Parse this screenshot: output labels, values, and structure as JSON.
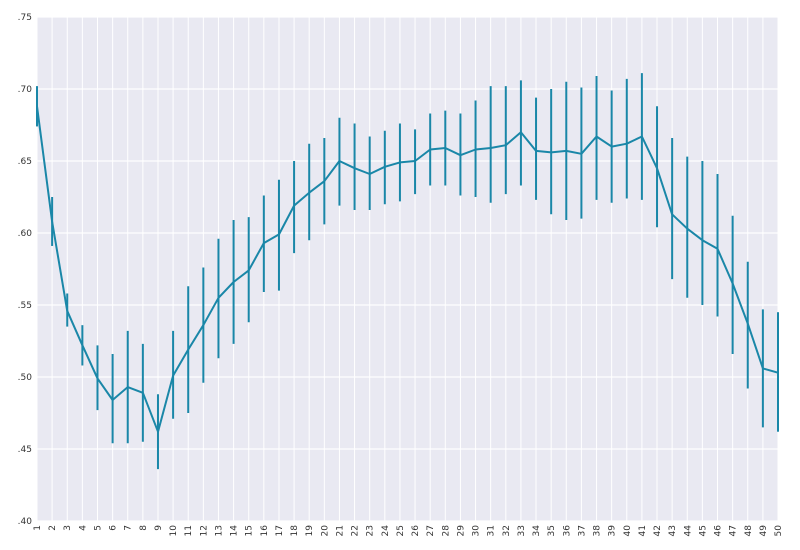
{
  "chart_data": {
    "type": "line",
    "title": "",
    "xlabel": "",
    "ylabel": "",
    "ylim": [
      0.4,
      0.75
    ],
    "y_ticks": [
      ".40",
      ".45",
      ".50",
      ".55",
      ".60",
      ".65",
      ".70",
      ".75"
    ],
    "y_tick_values": [
      0.4,
      0.45,
      0.5,
      0.55,
      0.6,
      0.65,
      0.7,
      0.75
    ],
    "x_ticks": [
      "1",
      "2",
      "3",
      "4",
      "5",
      "6",
      "7",
      "8",
      "9",
      "10",
      "11",
      "12",
      "13",
      "14",
      "15",
      "16",
      "17",
      "18",
      "19",
      "20",
      "21",
      "22",
      "23",
      "24",
      "25",
      "26",
      "27",
      "28",
      "29",
      "30",
      "31",
      "32",
      "33",
      "34",
      "35",
      "36",
      "37",
      "38",
      "39",
      "40",
      "41",
      "42",
      "43",
      "44",
      "45",
      "46",
      "47",
      "48",
      "49",
      "50"
    ],
    "grid": true,
    "colors": {
      "line": "#1a87a8",
      "background": "#e9e9f2",
      "grid": "#ffffff"
    },
    "series": [
      {
        "values": [
          0.688,
          0.608,
          0.546,
          0.522,
          0.499,
          0.484,
          0.493,
          0.489,
          0.462,
          0.501,
          0.519,
          0.536,
          0.555,
          0.566,
          0.574,
          0.593,
          0.599,
          0.619,
          0.628,
          0.636,
          0.65,
          0.645,
          0.641,
          0.646,
          0.649,
          0.65,
          0.658,
          0.659,
          0.654,
          0.658,
          0.659,
          0.661,
          0.67,
          0.657,
          0.656,
          0.657,
          0.655,
          0.667,
          0.66,
          0.662,
          0.667,
          0.645,
          0.613,
          0.603,
          0.595,
          0.589,
          0.565,
          0.537,
          0.506,
          0.503
        ],
        "err_low": [
          0.674,
          0.591,
          0.535,
          0.508,
          0.477,
          0.454,
          0.454,
          0.455,
          0.436,
          0.471,
          0.475,
          0.496,
          0.513,
          0.523,
          0.538,
          0.559,
          0.56,
          0.586,
          0.595,
          0.606,
          0.619,
          0.616,
          0.616,
          0.62,
          0.622,
          0.627,
          0.633,
          0.633,
          0.626,
          0.625,
          0.621,
          0.627,
          0.633,
          0.623,
          0.613,
          0.609,
          0.61,
          0.623,
          0.621,
          0.624,
          0.623,
          0.604,
          0.568,
          0.555,
          0.55,
          0.542,
          0.516,
          0.492,
          0.465,
          0.462
        ],
        "err_high": [
          0.702,
          0.625,
          0.558,
          0.536,
          0.522,
          0.516,
          0.532,
          0.523,
          0.488,
          0.532,
          0.563,
          0.576,
          0.596,
          0.609,
          0.611,
          0.626,
          0.637,
          0.65,
          0.662,
          0.666,
          0.68,
          0.676,
          0.667,
          0.671,
          0.676,
          0.672,
          0.683,
          0.685,
          0.683,
          0.692,
          0.702,
          0.702,
          0.706,
          0.694,
          0.7,
          0.705,
          0.701,
          0.709,
          0.699,
          0.707,
          0.711,
          0.688,
          0.666,
          0.653,
          0.65,
          0.641,
          0.612,
          0.58,
          0.547,
          0.545
        ]
      }
    ]
  }
}
